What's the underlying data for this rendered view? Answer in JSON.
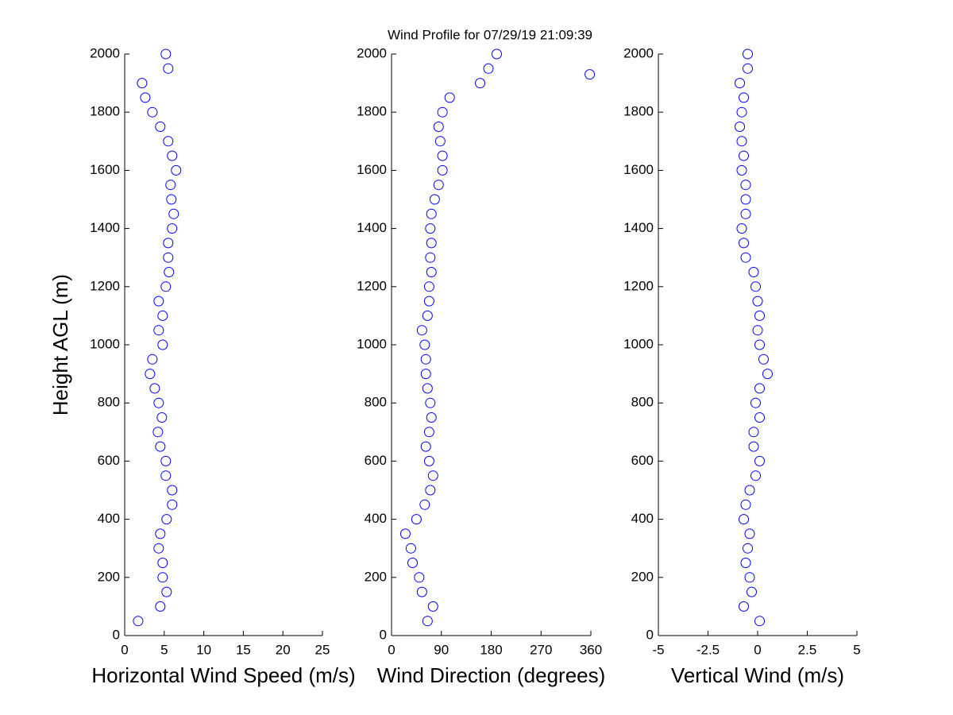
{
  "chart_data": [
    {
      "type": "scatter",
      "title": "Wind Profile for  07/29/19 21:09:39",
      "y_label": "Height AGL (m)",
      "x_label": "Horizontal Wind Speed (m/s)",
      "color": "#0000ff",
      "x": [
        1.7,
        4.5,
        5.3,
        4.8,
        4.8,
        4.3,
        4.5,
        5.3,
        6.0,
        6.0,
        5.2,
        5.2,
        4.5,
        4.2,
        4.7,
        4.3,
        3.8,
        3.2,
        3.5,
        4.8,
        4.3,
        4.8,
        4.3,
        5.2,
        5.6,
        5.5,
        5.5,
        6.0,
        6.2,
        5.9,
        5.8,
        6.5,
        6.0,
        5.5,
        4.5,
        3.5,
        2.6,
        2.2,
        5.5,
        5.2
      ],
      "y": [
        50,
        100,
        150,
        200,
        250,
        300,
        350,
        400,
        450,
        500,
        550,
        600,
        650,
        700,
        750,
        800,
        850,
        900,
        950,
        1000,
        1050,
        1100,
        1150,
        1200,
        1250,
        1300,
        1350,
        1400,
        1450,
        1500,
        1550,
        1600,
        1650,
        1700,
        1750,
        1800,
        1850,
        1900,
        1950,
        2000
      ],
      "xlim": [
        0,
        25
      ],
      "xticks": [
        0,
        5,
        10,
        15,
        20,
        25
      ],
      "ylim": [
        0,
        2000
      ],
      "yticks": [
        0,
        200,
        400,
        600,
        800,
        1000,
        1200,
        1400,
        1600,
        1800,
        2000
      ]
    },
    {
      "type": "scatter",
      "x_label": "Wind Direction (degrees)",
      "color": "#0000ff",
      "x": [
        65,
        75,
        55,
        50,
        38,
        35,
        25,
        45,
        60,
        70,
        75,
        68,
        62,
        68,
        72,
        70,
        65,
        62,
        62,
        60,
        55,
        65,
        68,
        68,
        72,
        70,
        72,
        70,
        72,
        78,
        85,
        92,
        92,
        88,
        85,
        92,
        105,
        160,
        175,
        190,
        358
      ],
      "y": [
        50,
        100,
        150,
        200,
        250,
        300,
        350,
        400,
        450,
        500,
        550,
        600,
        650,
        700,
        750,
        800,
        850,
        900,
        950,
        1000,
        1050,
        1100,
        1150,
        1200,
        1250,
        1300,
        1350,
        1400,
        1450,
        1500,
        1550,
        1600,
        1650,
        1700,
        1750,
        1800,
        1850,
        1900,
        1950,
        2000,
        1930
      ],
      "xlim": [
        0,
        360
      ],
      "xticks": [
        0,
        90,
        180,
        270,
        360
      ],
      "ylim": [
        0,
        2000
      ],
      "yticks": [
        0,
        200,
        400,
        600,
        800,
        1000,
        1200,
        1400,
        1600,
        1800,
        2000
      ]
    },
    {
      "type": "scatter",
      "x_label": "Vertical Wind (m/s)",
      "color": "#0000ff",
      "x": [
        0.1,
        -0.7,
        -0.3,
        -0.4,
        -0.6,
        -0.5,
        -0.4,
        -0.7,
        -0.6,
        -0.4,
        -0.1,
        0.1,
        -0.2,
        -0.2,
        0.1,
        -0.1,
        0.1,
        0.5,
        0.3,
        0.1,
        0.0,
        0.1,
        0.0,
        -0.1,
        -0.2,
        -0.6,
        -0.7,
        -0.8,
        -0.6,
        -0.6,
        -0.6,
        -0.8,
        -0.7,
        -0.8,
        -0.9,
        -0.8,
        -0.7,
        -0.9,
        -0.5,
        -0.5
      ],
      "y": [
        50,
        100,
        150,
        200,
        250,
        300,
        350,
        400,
        450,
        500,
        550,
        600,
        650,
        700,
        750,
        800,
        850,
        900,
        950,
        1000,
        1050,
        1100,
        1150,
        1200,
        1250,
        1300,
        1350,
        1400,
        1450,
        1500,
        1550,
        1600,
        1650,
        1700,
        1750,
        1800,
        1850,
        1900,
        1950,
        2000
      ],
      "xlim": [
        -5,
        5
      ],
      "xticks": [
        -5,
        -2.5,
        0,
        2.5,
        5
      ],
      "ylim": [
        0,
        2000
      ],
      "yticks": [
        0,
        200,
        400,
        600,
        800,
        1000,
        1200,
        1400,
        1600,
        1800,
        2000
      ]
    }
  ]
}
